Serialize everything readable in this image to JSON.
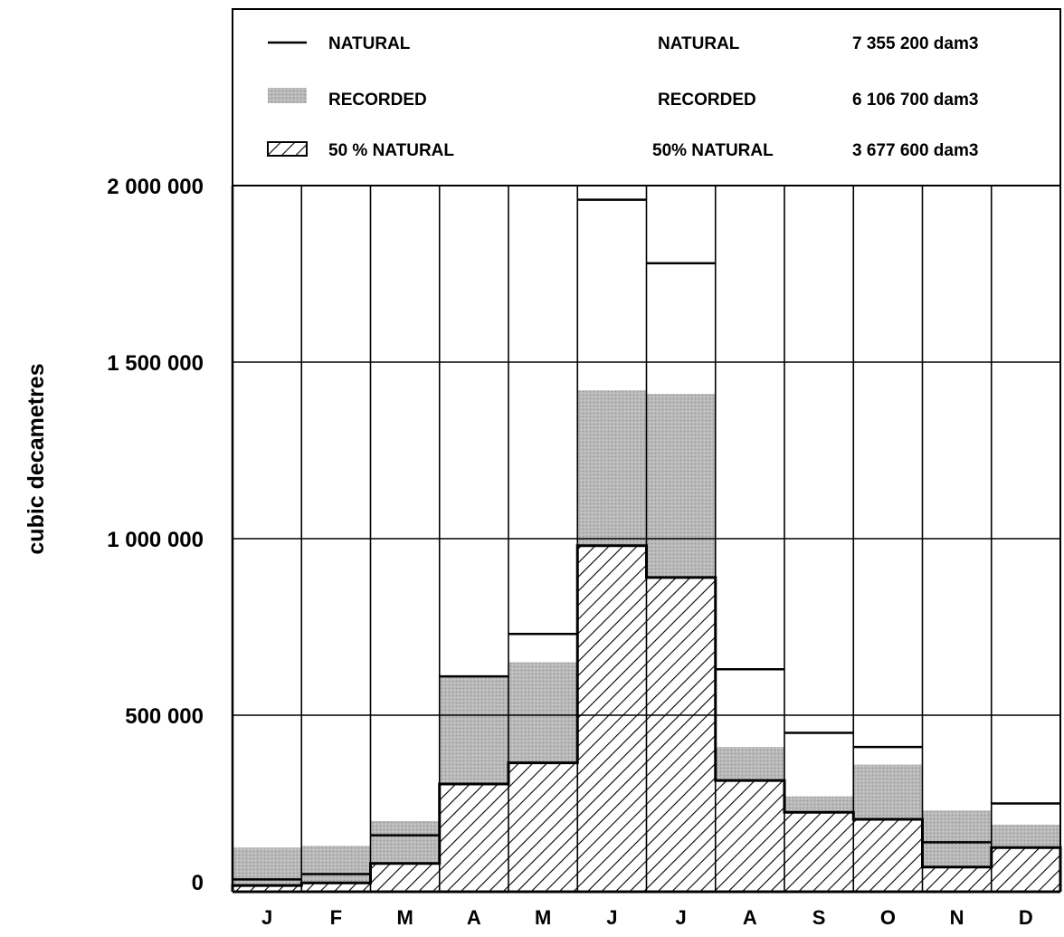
{
  "chart_data": {
    "type": "bar",
    "title": "",
    "xlabel": "",
    "ylabel": "cubic decametres",
    "ylim": [
      0,
      2000000
    ],
    "yticks": [
      0,
      500000,
      1000000,
      1500000,
      2000000
    ],
    "ytick_labels": [
      "0",
      "500 000",
      "1 000 000",
      "1 500 000",
      "2 000 000"
    ],
    "categories": [
      "J",
      "F",
      "M",
      "A",
      "M",
      "J",
      "J",
      "A",
      "S",
      "O",
      "N",
      "D"
    ],
    "series": [
      {
        "name": "NATURAL",
        "style": "line",
        "values": [
          35000,
          50000,
          160000,
          610000,
          730000,
          1960000,
          1780000,
          630000,
          450000,
          410000,
          140000,
          250000
        ]
      },
      {
        "name": "RECORDED",
        "style": "shaded",
        "values": [
          125000,
          130000,
          200000,
          610000,
          650000,
          1420000,
          1410000,
          410000,
          270000,
          360000,
          230000,
          190000
        ]
      },
      {
        "name": "50 % NATURAL",
        "style": "hatched",
        "values": [
          17500,
          25000,
          80000,
          305000,
          365000,
          980000,
          890000,
          315000,
          225000,
          205000,
          70000,
          125000
        ]
      }
    ],
    "grid": true,
    "legend": {
      "placement": "top",
      "entries": [
        {
          "label": "NATURAL",
          "total_label": "NATURAL",
          "total": "7 355 200 dam3"
        },
        {
          "label": "RECORDED",
          "total_label": "RECORDED",
          "total": "6 106 700 dam3"
        },
        {
          "label": "50 % NATURAL",
          "total_label": "50% NATURAL",
          "total": "3 677 600 dam3"
        }
      ]
    },
    "colors": {
      "recorded_fill": "#b3b3b3",
      "line": "#000000",
      "background": "#ffffff"
    }
  }
}
